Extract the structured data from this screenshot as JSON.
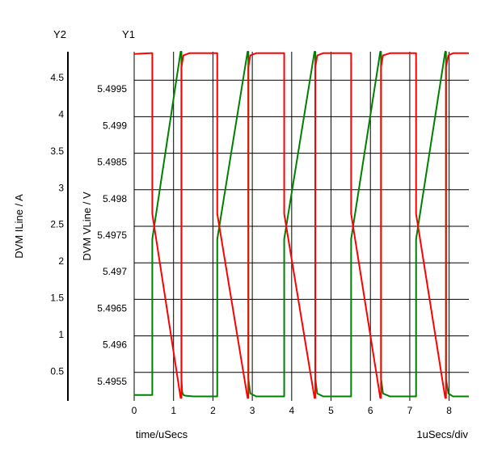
{
  "chart_data": {
    "type": "line",
    "y2_axis_caption": "Y2",
    "y1_axis_caption": "Y1",
    "y2_label": "DVM ILine / A",
    "y1_label": "DVM VLine / V",
    "xlabel": "time/uSecs",
    "x_scale_note": "1uSecs/div",
    "x_ticks": [
      "0",
      "1",
      "2",
      "3",
      "4",
      "5",
      "6",
      "7",
      "8"
    ],
    "x_range": [
      0,
      8.5
    ],
    "y2_ticks": [
      "0.5",
      "1",
      "1.5",
      "2",
      "2.5",
      "3",
      "3.5",
      "4",
      "4.5"
    ],
    "y2_range": [
      0.1,
      4.85
    ],
    "y1_ticks": [
      "5.4955",
      "5.496",
      "5.4965",
      "5.497",
      "5.4975",
      "5.498",
      "5.4985",
      "5.499",
      "5.4995"
    ],
    "y1_range": [
      5.49511,
      5.49989
    ],
    "grid": true,
    "colors": {
      "current": "#008000",
      "voltage": "#ff0000",
      "grid": "#000000"
    },
    "series": [
      {
        "key": "current",
        "axis": "y2",
        "x": [
          0,
          0.45,
          0.46,
          0.46,
          1.18,
          1.2,
          1.2,
          1.22,
          1.25,
          1.3,
          1.5,
          2.1,
          2.11,
          2.11,
          2.88,
          2.9,
          2.9,
          2.95,
          3.1,
          3.8,
          3.81,
          3.81,
          4.58,
          4.6,
          4.6,
          4.65,
          4.8,
          5.5,
          5.51,
          5.51,
          6.25,
          6.27,
          6.27,
          6.32,
          6.5,
          7.15,
          7.16,
          7.16,
          7.9,
          7.92,
          7.92,
          7.98,
          8.1,
          8.5
        ],
        "y": [
          0.18,
          0.18,
          0.18,
          2.3,
          4.85,
          4.85,
          0.4,
          0.22,
          0.18,
          0.17,
          0.16,
          0.16,
          0.16,
          2.3,
          4.85,
          4.85,
          0.4,
          0.2,
          0.16,
          0.16,
          0.16,
          2.3,
          4.85,
          4.85,
          0.4,
          0.2,
          0.16,
          0.16,
          0.16,
          2.3,
          4.85,
          4.85,
          0.4,
          0.2,
          0.16,
          0.16,
          0.16,
          2.3,
          4.85,
          4.85,
          0.4,
          0.2,
          0.16,
          0.16
        ]
      },
      {
        "key": "voltage",
        "axis": "y1",
        "x": [
          0,
          0.42,
          0.44,
          0.45,
          0.46,
          0.46,
          1.18,
          1.2,
          1.2,
          1.25,
          1.4,
          2.1,
          2.11,
          2.11,
          2.88,
          2.9,
          2.9,
          2.95,
          3.1,
          3.8,
          3.81,
          3.81,
          4.58,
          4.6,
          4.6,
          4.65,
          4.8,
          5.5,
          5.51,
          5.51,
          6.25,
          6.27,
          6.27,
          6.32,
          6.5,
          7.15,
          7.16,
          7.16,
          7.9,
          7.92,
          7.92,
          7.98,
          8.1,
          8.5
        ],
        "y": [
          5.49986,
          5.49987,
          5.49987,
          5.49987,
          5.49987,
          5.49767,
          5.49515,
          5.49515,
          5.49968,
          5.49984,
          5.49987,
          5.49987,
          5.49987,
          5.49767,
          5.49515,
          5.49515,
          5.49968,
          5.49984,
          5.49987,
          5.49987,
          5.49987,
          5.49767,
          5.49515,
          5.49515,
          5.49968,
          5.49984,
          5.49987,
          5.49987,
          5.49987,
          5.49767,
          5.49515,
          5.49515,
          5.49968,
          5.49984,
          5.49987,
          5.49987,
          5.49987,
          5.49767,
          5.49515,
          5.49515,
          5.49968,
          5.49984,
          5.49987,
          5.49987
        ]
      }
    ]
  }
}
